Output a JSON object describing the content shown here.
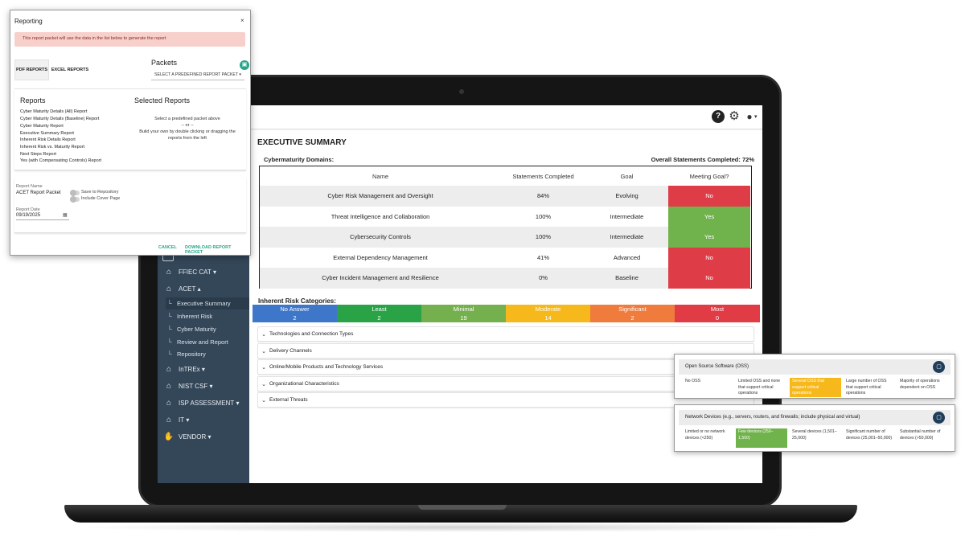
{
  "sidebar": {
    "items": [
      {
        "label": "FFIEC CAT",
        "caret": "▾",
        "icon": "bank-icon"
      },
      {
        "label": "ACET",
        "caret": "▴",
        "icon": "bank-icon"
      },
      {
        "label": "InTREx",
        "caret": "▾",
        "icon": "bank-icon"
      },
      {
        "label": "NIST CSF",
        "caret": "▾",
        "icon": "bank-icon"
      },
      {
        "label": "ISP ASSESSMENT",
        "caret": "▾",
        "icon": "bank-icon"
      },
      {
        "label": "IT",
        "caret": "▾",
        "icon": "bank-icon"
      },
      {
        "label": "VENDOR",
        "caret": "▾",
        "icon": "handshake-icon"
      }
    ],
    "acet_subitems": [
      "Executive Summary",
      "Inherent Risk",
      "Cyber Maturity",
      "Review and Report",
      "Repository"
    ],
    "active_subitem": "Executive Summary",
    "tick": "└"
  },
  "topbar": {
    "help_icon": "?",
    "gear_icon": "⚙",
    "user_icon": "●",
    "caret": "▾"
  },
  "executive_summary": {
    "title": "EXECUTIVE SUMMARY",
    "domains_label": "Cybermaturity Domains:",
    "overall": "Overall Statements Completed: 72%",
    "columns": [
      "Name",
      "Statements Completed",
      "Goal",
      "Meeting Goal?"
    ],
    "rows": [
      {
        "name": "Cyber Risk Management and Oversight",
        "completed": "84%",
        "goal": "Evolving",
        "meeting": "No"
      },
      {
        "name": "Threat Intelligence and Collaboration",
        "completed": "100%",
        "goal": "Intermediate",
        "meeting": "Yes"
      },
      {
        "name": "Cybersecurity Controls",
        "completed": "100%",
        "goal": "Intermediate",
        "meeting": "Yes"
      },
      {
        "name": "External Dependency Management",
        "completed": "41%",
        "goal": "Advanced",
        "meeting": "No"
      },
      {
        "name": "Cyber Incident Management and Resilience",
        "completed": "0%",
        "goal": "Baseline",
        "meeting": "No"
      }
    ],
    "inherent_label": "Inherent Risk Categories:",
    "risk_categories": [
      {
        "label": "No Answer",
        "count": "2",
        "color": "#3e77c9"
      },
      {
        "label": "Least",
        "count": "2",
        "color": "#2aa347"
      },
      {
        "label": "Minimal",
        "count": "19",
        "color": "#74b04d"
      },
      {
        "label": "Moderate",
        "count": "14",
        "color": "#f6b81b"
      },
      {
        "label": "Significant",
        "count": "2",
        "color": "#ef7b3c"
      },
      {
        "label": "Most",
        "count": "0",
        "color": "#e13b45"
      }
    ],
    "sections": [
      "Technologies and Connection Types",
      "Delivery Channels",
      "Online/Mobile Products and Technology Services",
      "Organizational Characteristics",
      "External Threats"
    ],
    "colors": {
      "no": "#de3d47",
      "yes": "#70b24b"
    }
  },
  "modal": {
    "title": "Reporting",
    "close": "×",
    "alert": "This report packet will use the data in the list below to generate the report",
    "tabs": [
      "PDF REPORTS",
      "EXCEL REPORTS"
    ],
    "packets_heading": "Packets",
    "packets_select": "SELECT A PREDEFINED REPORT PACKET ▾",
    "reports_heading": "Reports",
    "selected_heading": "Selected Reports",
    "reports": [
      "Cyber Maturity Details (All) Report",
      "Cyber Maturity Details (Baseline) Report",
      "Cyber Maturity Report",
      "Executive Summary Report",
      "Inherent Risk Details Report",
      "Inherent Risk vs. Maturity Report",
      "Next Steps Report",
      "Yes (with Compensating Controls) Report"
    ],
    "selected_help": [
      "Select a predefined packet above",
      "-- or --",
      "Build your own by double clicking or dragging the",
      "reports from the left"
    ],
    "report_name_label": "Report Name",
    "report_name": "ACET Report Packet",
    "save_repo": "Save to Repository",
    "include_cover": "Include Cover Page",
    "report_date_label": "Report Date",
    "report_date": "09/19/2025",
    "cancel": "CANCEL",
    "download": "DOWNLOAD REPORT PACKET"
  },
  "cards": [
    {
      "title": "Open Source Software (OSS)",
      "options": [
        "No OSS",
        "Limited OSS and none that support critical operations",
        "Several OSS that support critical operations",
        "Large number of OSS that support critical operations",
        "Majority of operations dependent on OSS"
      ],
      "selected": 2,
      "selected_color": "#f6b81b"
    },
    {
      "title": "Network Devices (e.g., servers, routers, and firewalls; include physical and virtual)",
      "options": [
        "Limited or no network devices (<250)",
        "Few devices (250–1,500)",
        "Several devices (1,501–25,000)",
        "Significant number of devices (25,001–50,000)",
        "Substantial number of devices (>50,000)"
      ],
      "selected": 1,
      "selected_color": "#70b24b"
    }
  ]
}
